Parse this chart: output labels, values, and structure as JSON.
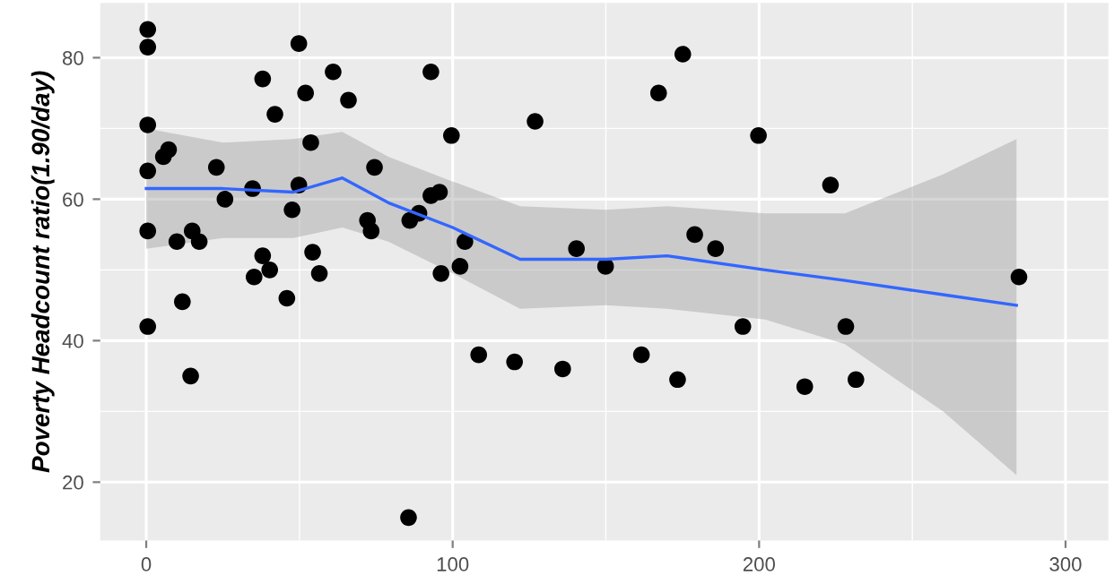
{
  "chart_data": {
    "type": "scatter",
    "ylabel": "Poverty Headcount ratio(1.90/day)",
    "xlim": [
      -15,
      314
    ],
    "ylim": [
      11.75,
      87.75
    ],
    "xticks": [
      0,
      100,
      200,
      300
    ],
    "yticks": [
      20,
      40,
      60,
      80
    ],
    "grid": true,
    "marker": "circle",
    "series": [
      {
        "color": "#000000",
        "x": [
          0.5,
          0.5,
          0.5,
          0.5,
          0.5,
          0.5,
          5.6,
          7.3,
          10,
          11.8,
          15,
          14.5,
          17.3,
          22.9,
          25.7,
          34.7,
          35.2,
          38,
          38,
          40.3,
          42,
          45.9,
          47.6,
          49.8,
          49.8,
          52,
          53.7,
          54.3,
          56.5,
          61,
          66,
          72.2,
          73.4,
          74.5,
          85.6,
          86,
          89,
          92.9,
          92.9,
          95.7,
          96.2,
          99.6,
          102.4,
          104,
          108.5,
          120.2,
          126.9,
          135.9,
          140.4,
          149.9,
          161.6,
          167.2,
          173.4,
          175.1,
          179,
          185.8,
          194.7,
          199.8,
          214.9,
          223.3,
          228.3,
          231.6,
          284.8
        ],
        "values": [
          84,
          81.5,
          70.5,
          64,
          55.5,
          42,
          66,
          67,
          54,
          45.5,
          55.5,
          35,
          54,
          64.5,
          60,
          61.5,
          49,
          52,
          77,
          50,
          72,
          46,
          58.5,
          62,
          82,
          75,
          68,
          52.5,
          49.5,
          78,
          74,
          57,
          55.5,
          64.5,
          15,
          57,
          58,
          78,
          60.5,
          61,
          49.5,
          69,
          50.5,
          54,
          38,
          37,
          71,
          36,
          53,
          50.5,
          38,
          75,
          34.5,
          80.5,
          55,
          53,
          42,
          69,
          33.5,
          62,
          42,
          34.5,
          49
        ]
      },
      {
        "type": "line",
        "color": "#3366ff",
        "marker": "none",
        "x": [
          0,
          25,
          48,
          64,
          79,
          100,
          122,
          150,
          170,
          202,
          228,
          260,
          284
        ],
        "values": [
          61.5,
          61.5,
          61,
          63,
          59.5,
          56,
          51.5,
          51.5,
          52,
          50,
          48.5,
          46.5,
          45
        ],
        "lower": [
          53,
          54.5,
          54.5,
          56,
          54,
          49.5,
          44.5,
          45,
          44.5,
          43,
          39.5,
          30,
          21
        ],
        "upper": [
          70,
          68,
          68.5,
          69.5,
          66,
          62.5,
          59,
          58.5,
          59,
          58,
          58,
          63.5,
          68.5
        ]
      }
    ]
  }
}
